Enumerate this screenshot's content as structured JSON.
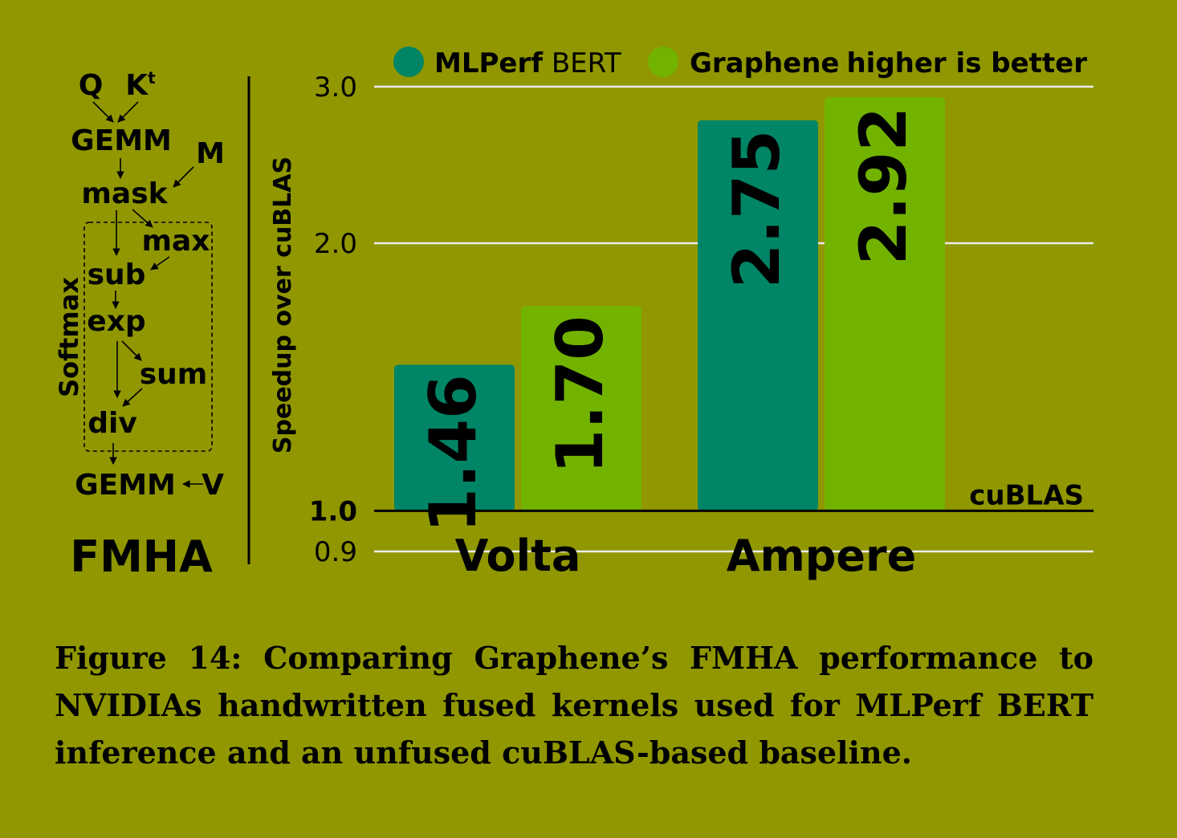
{
  "diagram": {
    "title": "FMHA",
    "softmax_label": "Softmax",
    "nodes": {
      "q": "Q",
      "k": "K",
      "k_sup": "t",
      "gemm1": "GEMM",
      "m": "M",
      "mask": "mask",
      "max": "max",
      "sub": "sub",
      "exp": "exp",
      "sum": "sum",
      "div": "div",
      "gemm2": "GEMM",
      "v": "V"
    }
  },
  "chart_data": {
    "type": "bar",
    "categories": [
      "Volta",
      "Ampere"
    ],
    "series": [
      {
        "name": "MLPerf BERT",
        "name_bold": "MLPerf",
        "name_regular": "BERT",
        "values": [
          1.46,
          2.75
        ],
        "labels": [
          "1.46",
          "2.75"
        ],
        "color": "#008566"
      },
      {
        "name": "Graphene",
        "values": [
          1.7,
          2.92
        ],
        "labels": [
          "1.70",
          "2.92"
        ],
        "color": "#72b300"
      }
    ],
    "ylabel": "Speedup over cuBLAS",
    "yscale": "log",
    "ylim": [
      0.9,
      3.0
    ],
    "yticks": [
      {
        "value": 3.0,
        "label": "3.0"
      },
      {
        "value": 2.0,
        "label": "2.0"
      },
      {
        "value": 1.0,
        "label": "1.0"
      },
      {
        "value": 0.9,
        "label": "0.9"
      }
    ],
    "baseline": {
      "value": 1.0,
      "label": "cuBLAS"
    },
    "annotation": "higher is better",
    "legend_position": "top",
    "grid": true
  },
  "caption": "Figure 14: Comparing Graphene’s FMHA performance to NVIDIAs handwritten fused kernels used for MLPerf BERT inference and an unfused cuBLAS-based baseline."
}
